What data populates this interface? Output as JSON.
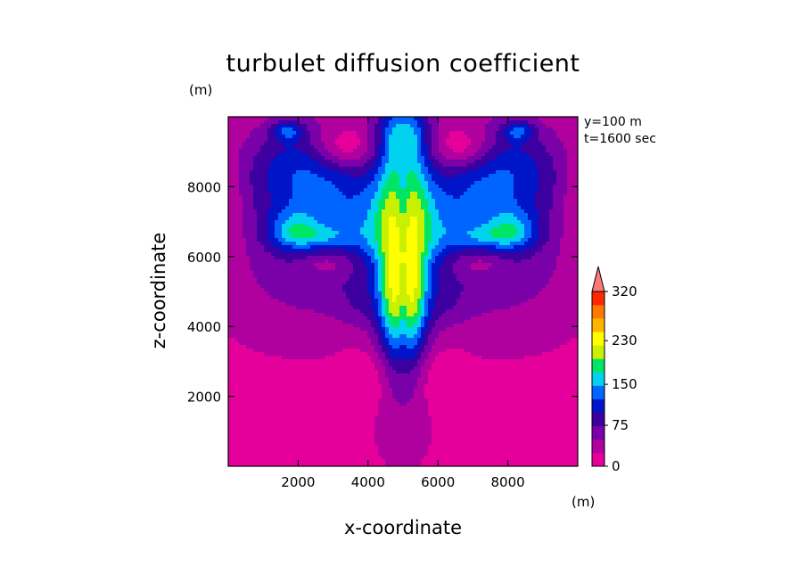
{
  "chart_data": {
    "type": "heatmap",
    "title": "turbulet diffusion coefficient",
    "xlabel": "x-coordinate",
    "ylabel": "z-coordinate",
    "x_unit": "(m)",
    "y_unit": "(m)",
    "annotations": [
      "y=100 m",
      "t=1600 sec"
    ],
    "xlim": [
      0,
      10000
    ],
    "ylim": [
      0,
      10000
    ],
    "xticks": [
      2000,
      4000,
      6000,
      8000
    ],
    "yticks": [
      2000,
      4000,
      6000,
      8000
    ],
    "xtick_labels": [
      "2000",
      "4000",
      "6000",
      "8000"
    ],
    "ytick_labels": [
      "2000",
      "4000",
      "6000",
      "8000"
    ],
    "colorbar": {
      "labels": [
        "320",
        "230",
        "150",
        "75",
        "0"
      ],
      "label_values": [
        320,
        230,
        150,
        75,
        0
      ],
      "levels": [
        0,
        25,
        50,
        75,
        100,
        125,
        150,
        175,
        200,
        230,
        260,
        290,
        320
      ],
      "colors": [
        "#e6009b",
        "#b0009e",
        "#7a00a8",
        "#3c00a0",
        "#0014c8",
        "#0064ff",
        "#00d2f0",
        "#00e664",
        "#c8f000",
        "#ffff00",
        "#ffb400",
        "#ff7800",
        "#ff2800"
      ],
      "extend_color": "#ff7878"
    },
    "grid": false
  }
}
